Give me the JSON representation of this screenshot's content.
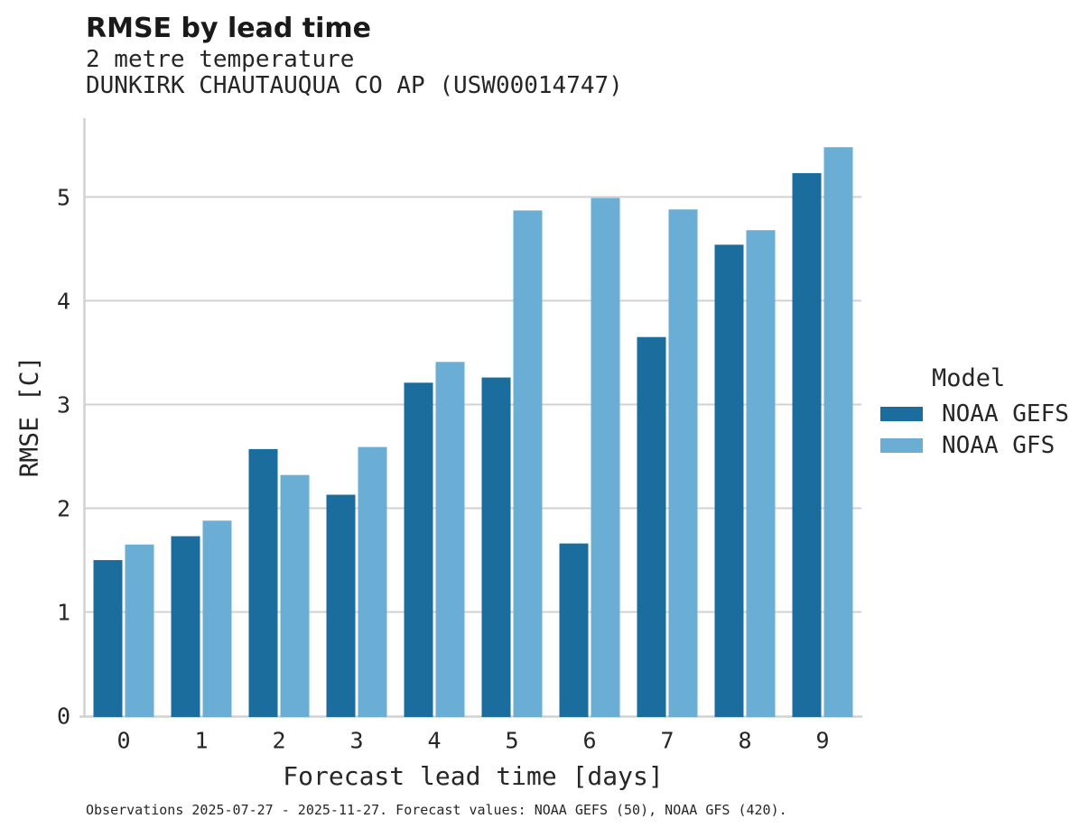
{
  "chart_data": {
    "type": "bar",
    "title": "RMSE by lead time",
    "subtitle": [
      "2 metre temperature",
      "DUNKIRK CHAUTAUQUA CO AP (USW00014747)"
    ],
    "xlabel": "Forecast lead time [days]",
    "ylabel": "RMSE [C]",
    "categories": [
      "0",
      "1",
      "2",
      "3",
      "4",
      "5",
      "6",
      "7",
      "8",
      "9"
    ],
    "series": [
      {
        "name": "NOAA GEFS",
        "color": "#1B6D9E",
        "values": [
          1.5,
          1.73,
          2.57,
          2.13,
          3.21,
          3.26,
          1.66,
          3.65,
          4.54,
          5.23
        ]
      },
      {
        "name": "NOAA GFS",
        "color": "#6AAED6",
        "values": [
          1.65,
          1.88,
          2.32,
          2.59,
          3.41,
          4.87,
          4.99,
          4.88,
          4.68,
          5.48
        ]
      }
    ],
    "legend_title": "Model",
    "legend_position": "right",
    "yticks": [
      0,
      1,
      2,
      3,
      4,
      5
    ],
    "ylim": [
      0,
      5.76
    ],
    "grid": true,
    "grid_color": "#D2D2D2",
    "text_color": "#262626",
    "background_color": "#FFFFFF",
    "caption": "Observations 2025-07-27 - 2025-11-27. Forecast values: NOAA GEFS (50), NOAA GFS (420)."
  }
}
